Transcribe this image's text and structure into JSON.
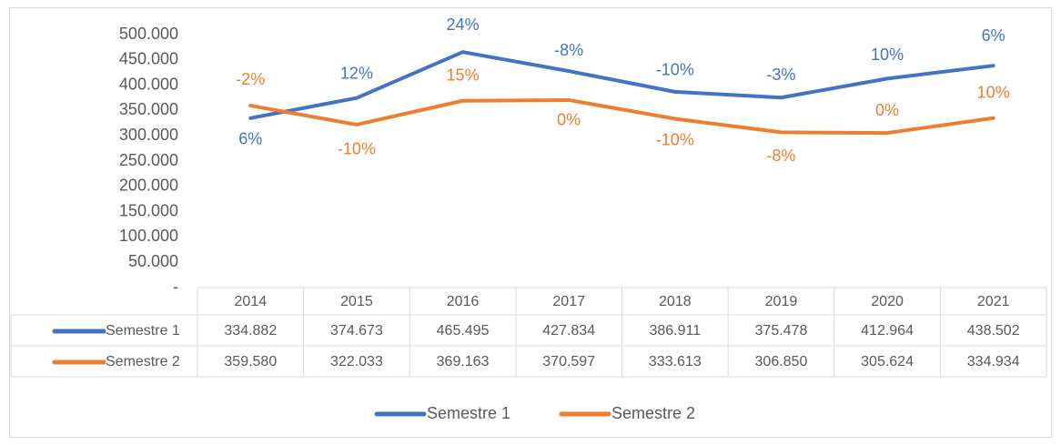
{
  "chart_data": {
    "type": "line",
    "categories": [
      "2014",
      "2015",
      "2016",
      "2017",
      "2018",
      "2019",
      "2020",
      "2021"
    ],
    "series": [
      {
        "name": "Semestre 1",
        "color": "#4472c4",
        "values": [
          334882,
          374673,
          465495,
          427834,
          386911,
          375478,
          412964,
          438502
        ],
        "value_labels": [
          "334.882",
          "374.673",
          "465.495",
          "427.834",
          "386.911",
          "375.478",
          "412.964",
          "438.502"
        ],
        "growth_labels": [
          "6%",
          "12%",
          "24%",
          "-8%",
          "-10%",
          "-3%",
          "10%",
          "6%"
        ]
      },
      {
        "name": "Semestre 2",
        "color": "#ed7d31",
        "values": [
          359580,
          322033,
          369163,
          370597,
          333613,
          306850,
          305624,
          334934
        ],
        "value_labels": [
          "359.580",
          "322.033",
          "369.163",
          "370.597",
          "333.613",
          "306.850",
          "305.624",
          "334.934"
        ],
        "growth_labels": [
          "-2%",
          "-10%",
          "15%",
          "0%",
          "-10%",
          "-8%",
          "0%",
          "10%"
        ]
      }
    ],
    "ylim": [
      0,
      500000
    ],
    "yticks": [
      {
        "value": 0,
        "label": "-"
      },
      {
        "value": 50000,
        "label": "50.000"
      },
      {
        "value": 100000,
        "label": "100.000"
      },
      {
        "value": 150000,
        "label": "150.000"
      },
      {
        "value": 200000,
        "label": "200.000"
      },
      {
        "value": 250000,
        "label": "250.000"
      },
      {
        "value": 300000,
        "label": "300.000"
      },
      {
        "value": 350000,
        "label": "350.000"
      },
      {
        "value": 400000,
        "label": "400.000"
      },
      {
        "value": 450000,
        "label": "450.000"
      },
      {
        "value": 500000,
        "label": "500.000"
      }
    ],
    "legend": "bottom",
    "data_table": true
  }
}
